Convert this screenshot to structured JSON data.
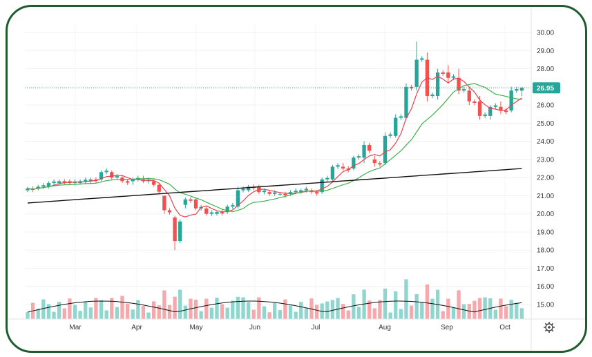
{
  "chart_data": {
    "type": "candlestick",
    "y_axis": {
      "ticks": [
        "15.00",
        "16.00",
        "17.00",
        "18.00",
        "19.00",
        "20.00",
        "21.00",
        "22.00",
        "23.00",
        "24.00",
        "25.00",
        "26.00",
        "27.00",
        "28.00",
        "29.00",
        "30.00"
      ],
      "range": [
        14.2,
        30.5
      ]
    },
    "x_axis": {
      "labels": [
        "Mar",
        "Apr",
        "May",
        "Jun",
        "Jul",
        "Aug",
        "Sep",
        "Oct"
      ]
    },
    "last_price": "26.95",
    "colors": {
      "up": "#26a69a",
      "down": "#ef5350",
      "ma_short": "#e8414b",
      "ma_mid": "#3fae49",
      "ma_long": "#111111",
      "label_bg": "#26a69a"
    },
    "ohlc_sample": [
      [
        21.3,
        21.5,
        21.2,
        21.4
      ],
      [
        21.4,
        21.6,
        21.3,
        21.5
      ],
      [
        21.5,
        21.8,
        21.4,
        21.7
      ],
      [
        21.7,
        21.9,
        21.6,
        21.8
      ],
      [
        21.8,
        21.9,
        21.6,
        21.7
      ],
      [
        21.7,
        21.9,
        21.6,
        21.8
      ],
      [
        21.8,
        22.0,
        21.7,
        21.9
      ],
      [
        21.9,
        22.4,
        21.8,
        22.3
      ],
      [
        22.3,
        22.4,
        21.9,
        22.0
      ],
      [
        22.0,
        22.1,
        21.7,
        21.8
      ],
      [
        21.8,
        22.0,
        21.6,
        21.9
      ],
      [
        21.9,
        22.1,
        21.7,
        21.8
      ],
      [
        21.8,
        21.9,
        21.5,
        21.6
      ],
      [
        21.0,
        21.0,
        20.0,
        20.2
      ],
      [
        19.8,
        19.9,
        18.0,
        18.5
      ],
      [
        20.5,
        20.9,
        20.3,
        20.8
      ],
      [
        20.8,
        20.9,
        20.2,
        20.3
      ],
      [
        20.3,
        20.4,
        19.9,
        20.0
      ],
      [
        20.0,
        20.2,
        19.9,
        20.1
      ],
      [
        20.1,
        20.5,
        20.0,
        20.4
      ],
      [
        20.4,
        21.5,
        20.3,
        21.3
      ],
      [
        21.3,
        21.6,
        21.2,
        21.5
      ],
      [
        21.5,
        21.6,
        21.1,
        21.2
      ],
      [
        21.2,
        21.3,
        21.0,
        21.1
      ],
      [
        21.1,
        21.2,
        21.0,
        21.1
      ],
      [
        21.1,
        21.3,
        21.0,
        21.2
      ],
      [
        21.2,
        21.4,
        21.1,
        21.3
      ],
      [
        21.3,
        21.4,
        21.1,
        21.2
      ],
      [
        21.2,
        22.0,
        21.1,
        21.9
      ],
      [
        21.9,
        22.7,
        21.8,
        22.6
      ],
      [
        22.6,
        22.8,
        22.4,
        22.5
      ],
      [
        22.5,
        23.2,
        22.4,
        23.1
      ],
      [
        23.1,
        24.0,
        22.8,
        23.8
      ],
      [
        23.0,
        23.2,
        22.6,
        22.8
      ],
      [
        22.8,
        24.5,
        22.7,
        24.3
      ],
      [
        24.3,
        25.5,
        24.2,
        25.3
      ],
      [
        25.3,
        27.2,
        25.2,
        27.0
      ],
      [
        27.0,
        29.5,
        26.8,
        28.5
      ],
      [
        28.5,
        28.9,
        26.2,
        26.5
      ],
      [
        26.5,
        28.0,
        26.3,
        27.8
      ],
      [
        27.8,
        28.2,
        27.2,
        27.5
      ],
      [
        27.5,
        28.0,
        26.6,
        26.8
      ],
      [
        26.8,
        27.0,
        26.0,
        26.2
      ],
      [
        26.2,
        26.5,
        25.2,
        25.4
      ],
      [
        25.4,
        26.0,
        25.2,
        25.9
      ],
      [
        25.9,
        26.2,
        25.5,
        25.7
      ],
      [
        25.7,
        27.0,
        25.6,
        26.8
      ],
      [
        26.8,
        27.0,
        26.5,
        26.95
      ]
    ]
  }
}
